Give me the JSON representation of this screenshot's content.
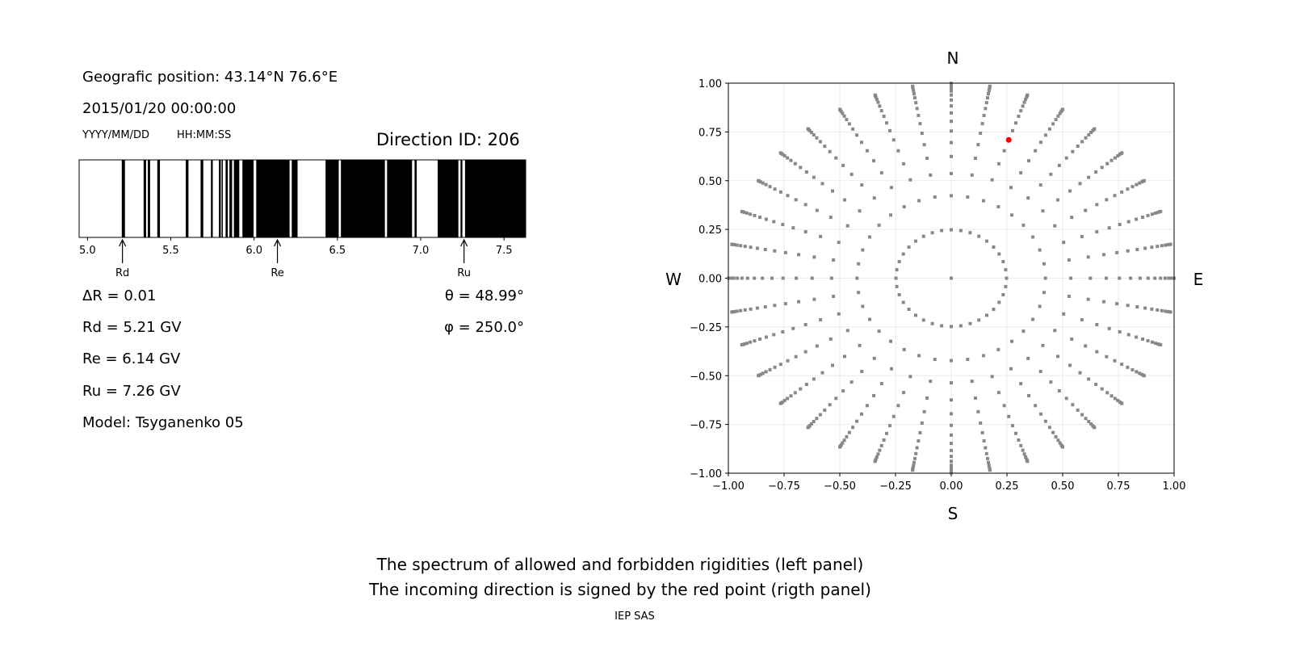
{
  "left_panel": {
    "position": "Geografic position: 43.14°N 76.6°E",
    "datetime": "2015/01/20 00:00:00",
    "date_format": "YYYY/MM/DD",
    "time_format": "HH:MM:SS",
    "direction_id": "Direction ID: 206",
    "delta_r": "ΔR = 0.01",
    "rd": "Rd = 5.21 GV",
    "re": "Re = 6.14 GV",
    "ru": "Ru = 7.26 GV",
    "model": "Model: Tsyganenko 05",
    "theta": "θ = 48.99°",
    "phi": "φ = 250.0°"
  },
  "footer": {
    "line1": "The spectrum of allowed and forbidden rigidities (left panel)",
    "line2": "The incoming direction is signed by the red point (rigth panel)",
    "credit": "IEP SAS"
  },
  "chart_data": [
    {
      "type": "spectrum-bar",
      "xlim": [
        4.95,
        7.63
      ],
      "xticks": [
        "5.0",
        "5.5",
        "6.0",
        "6.5",
        "7.0",
        "7.5"
      ],
      "forbidden_color": "#000000",
      "allowed_color": "#ffffff",
      "forbidden_intervals": [
        [
          5.206,
          5.225
        ],
        [
          5.337,
          5.352
        ],
        [
          5.362,
          5.376
        ],
        [
          5.419,
          5.435
        ],
        [
          5.59,
          5.606
        ],
        [
          5.679,
          5.695
        ],
        [
          5.741,
          5.752
        ],
        [
          5.789,
          5.8
        ],
        [
          5.805,
          5.812
        ],
        [
          5.829,
          5.842
        ],
        [
          5.852,
          5.868
        ],
        [
          5.879,
          5.911
        ],
        [
          5.93,
          5.997
        ],
        [
          6.013,
          6.213
        ],
        [
          6.226,
          6.261
        ],
        [
          6.429,
          6.508
        ],
        [
          6.521,
          6.785
        ],
        [
          6.798,
          6.948
        ],
        [
          6.963,
          6.976
        ],
        [
          7.102,
          7.226
        ],
        [
          7.239,
          7.25
        ],
        [
          7.266,
          7.63
        ]
      ],
      "markers": [
        {
          "label": "Rd",
          "value": 5.21
        },
        {
          "label": "Re",
          "value": 6.14
        },
        {
          "label": "Ru",
          "value": 7.26
        }
      ]
    },
    {
      "type": "scatter",
      "xlim": [
        -1.0,
        1.0
      ],
      "ylim": [
        -1.0,
        1.0
      ],
      "ticks": [
        "−1.00",
        "−0.75",
        "−0.50",
        "−0.25",
        "0.00",
        "0.25",
        "0.50",
        "0.75",
        "1.00"
      ],
      "grid": true,
      "compass": {
        "n": "N",
        "s": "S",
        "w": "W",
        "e": "E"
      },
      "grid_points": {
        "azimuth_step_deg": 10,
        "cos_zenith": [
          0.96875,
          0.90625,
          0.84375,
          0.78125,
          0.71875,
          0.65625,
          0.59375,
          0.53125,
          0.46875,
          0.40625,
          0.34375,
          0.28125,
          0.21875,
          0.15625,
          0.09375,
          0.03125
        ],
        "center": true,
        "color": "#888888"
      },
      "highlight": {
        "x": 0.258,
        "y": 0.709,
        "color": "#ff0000"
      }
    }
  ]
}
